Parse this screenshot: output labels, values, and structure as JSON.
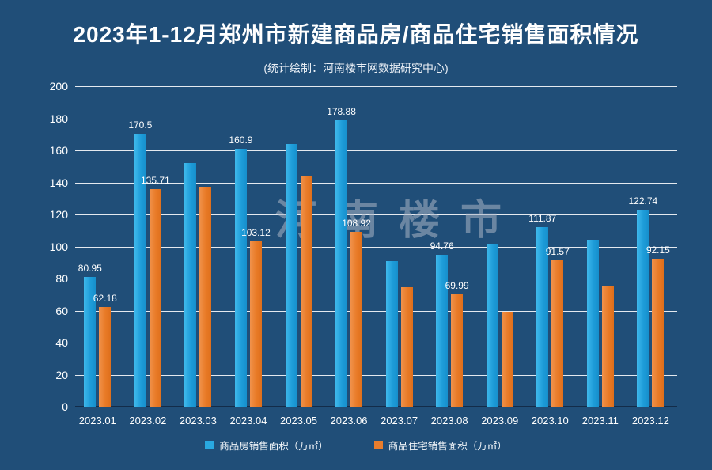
{
  "chart_data": {
    "type": "bar",
    "title": "2023年1-12月郑州市新建商品房/商品住宅销售面积情况",
    "subtitle": "(统计绘制：河南楼市网数据研究中心)",
    "watermark": "河南楼市",
    "categories": [
      "2023.01",
      "2023.02",
      "2023.03",
      "2023.04",
      "2023.05",
      "2023.06",
      "2023.07",
      "2023.08",
      "2023.09",
      "2023.10",
      "2023.11",
      "2023.12"
    ],
    "series": [
      {
        "name": "商品房销售面积（万㎡）",
        "color": "#29A8E0",
        "values": [
          80.95,
          170.5,
          152.2,
          160.9,
          163.8,
          178.88,
          91.0,
          94.76,
          101.7,
          111.87,
          104.3,
          122.74
        ],
        "labels": [
          "80.95",
          "170.5",
          "",
          "160.9",
          "",
          "178.88",
          "",
          "94.76",
          "",
          "111.87",
          "",
          "122.74"
        ]
      },
      {
        "name": "商品住宅销售面积（万㎡）",
        "color": "#E87D2D",
        "values": [
          62.18,
          135.71,
          137.4,
          103.12,
          143.6,
          108.92,
          74.4,
          69.99,
          59.2,
          91.57,
          74.9,
          92.15
        ],
        "labels": [
          "62.18",
          "135.71",
          "",
          "103.12",
          "",
          "108.92",
          "",
          "69.99",
          "",
          "91.57",
          "",
          "92.15"
        ]
      }
    ],
    "ylim": [
      0,
      200
    ],
    "yticks": [
      0,
      20,
      40,
      60,
      80,
      100,
      120,
      140,
      160,
      180,
      200
    ],
    "xlabel": "",
    "ylabel": "",
    "grid": true,
    "legend_position": "bottom",
    "background_color": "#204E78",
    "gridline_color": "#FFFFFF",
    "axis_line_color": "#132C49",
    "text_color": "#FFFFFF"
  }
}
